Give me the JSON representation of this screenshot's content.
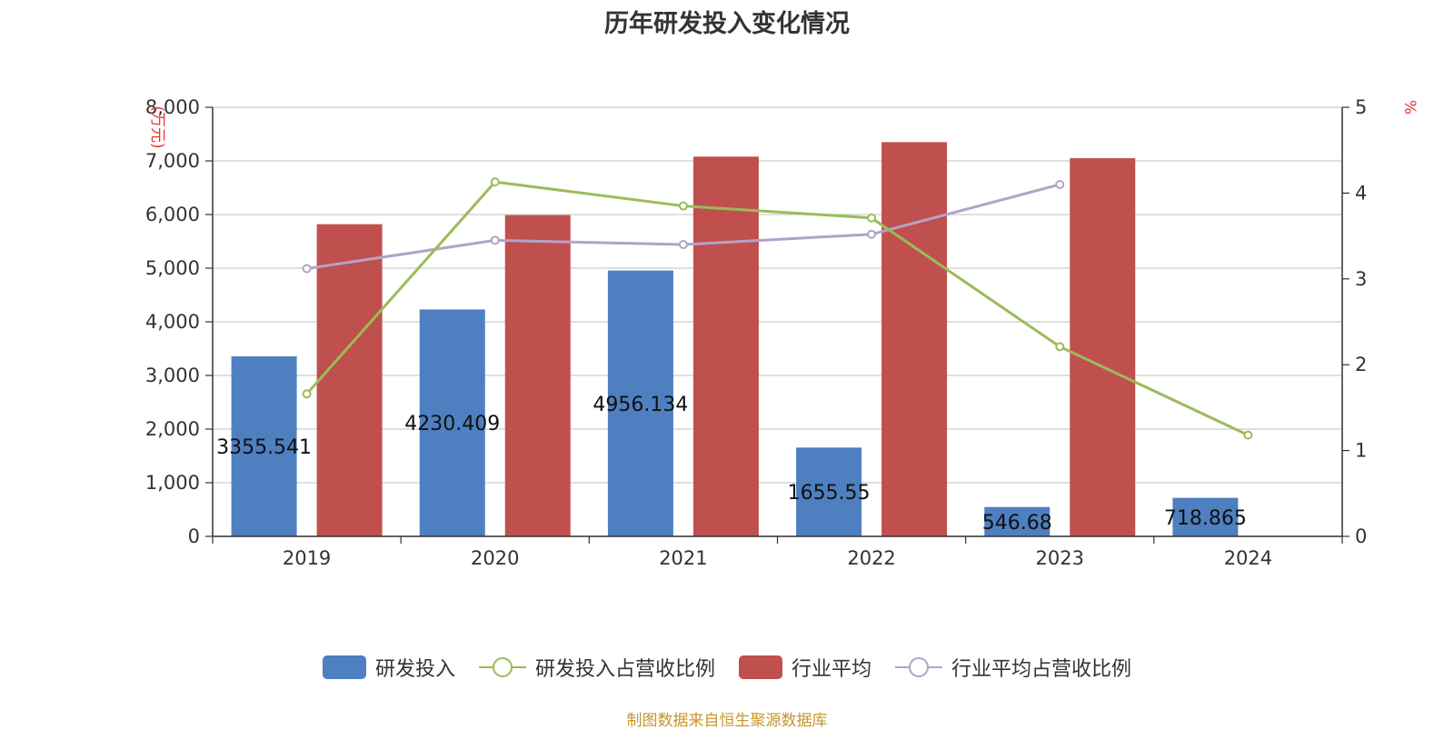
{
  "chart_data": {
    "type": "bar",
    "title": "历年研发投入变化情况",
    "categories": [
      "2019",
      "2020",
      "2021",
      "2022",
      "2023",
      "2024"
    ],
    "left_axis": {
      "unit": "(万元)",
      "ylim": [
        0,
        8000
      ],
      "ticks": [
        "0",
        "1,000",
        "2,000",
        "3,000",
        "4,000",
        "5,000",
        "6,000",
        "7,000",
        "8,000"
      ],
      "tick_values": [
        0,
        1000,
        2000,
        3000,
        4000,
        5000,
        6000,
        7000,
        8000
      ]
    },
    "right_axis": {
      "unit": "%",
      "ylim": [
        0,
        5
      ],
      "ticks": [
        "0",
        "1",
        "2",
        "3",
        "4",
        "5"
      ],
      "tick_values": [
        0,
        1,
        2,
        3,
        4,
        5
      ]
    },
    "series": [
      {
        "name": "研发投入",
        "kind": "bar",
        "axis": "left",
        "color": "#4e7fc0",
        "values": [
          3355.541,
          4230.409,
          4956.134,
          1655.55,
          546.68,
          718.865
        ],
        "labels": [
          "3355.541",
          "4230.409",
          "4956.134",
          "1655.55",
          "546.68",
          "718.865"
        ]
      },
      {
        "name": "研发投入占营收比例",
        "kind": "line",
        "axis": "right",
        "color": "#9bbb59",
        "values": [
          1.66,
          4.13,
          3.85,
          3.71,
          2.21,
          1.18
        ]
      },
      {
        "name": "行业平均",
        "kind": "bar",
        "axis": "left",
        "color": "#c0504d",
        "values": [
          5820,
          5990,
          7080,
          7350,
          7050,
          null
        ]
      },
      {
        "name": "行业平均占营收比例",
        "kind": "line",
        "axis": "right",
        "color": "#b3a2c7",
        "values": [
          3.12,
          3.45,
          3.4,
          3.52,
          4.1,
          null
        ]
      }
    ],
    "legend_position": "bottom",
    "grid": true
  },
  "legend": [
    {
      "name": "研发投入",
      "style": "bar",
      "color": "#4e7fc0"
    },
    {
      "name": "研发投入占营收比例",
      "style": "line",
      "color": "#9bbb59"
    },
    {
      "name": "行业平均",
      "style": "bar",
      "color": "#c0504d"
    },
    {
      "name": "行业平均占营收比例",
      "style": "line",
      "color": "#b3a2c7"
    }
  ],
  "source": "制图数据来自恒生聚源数据库"
}
